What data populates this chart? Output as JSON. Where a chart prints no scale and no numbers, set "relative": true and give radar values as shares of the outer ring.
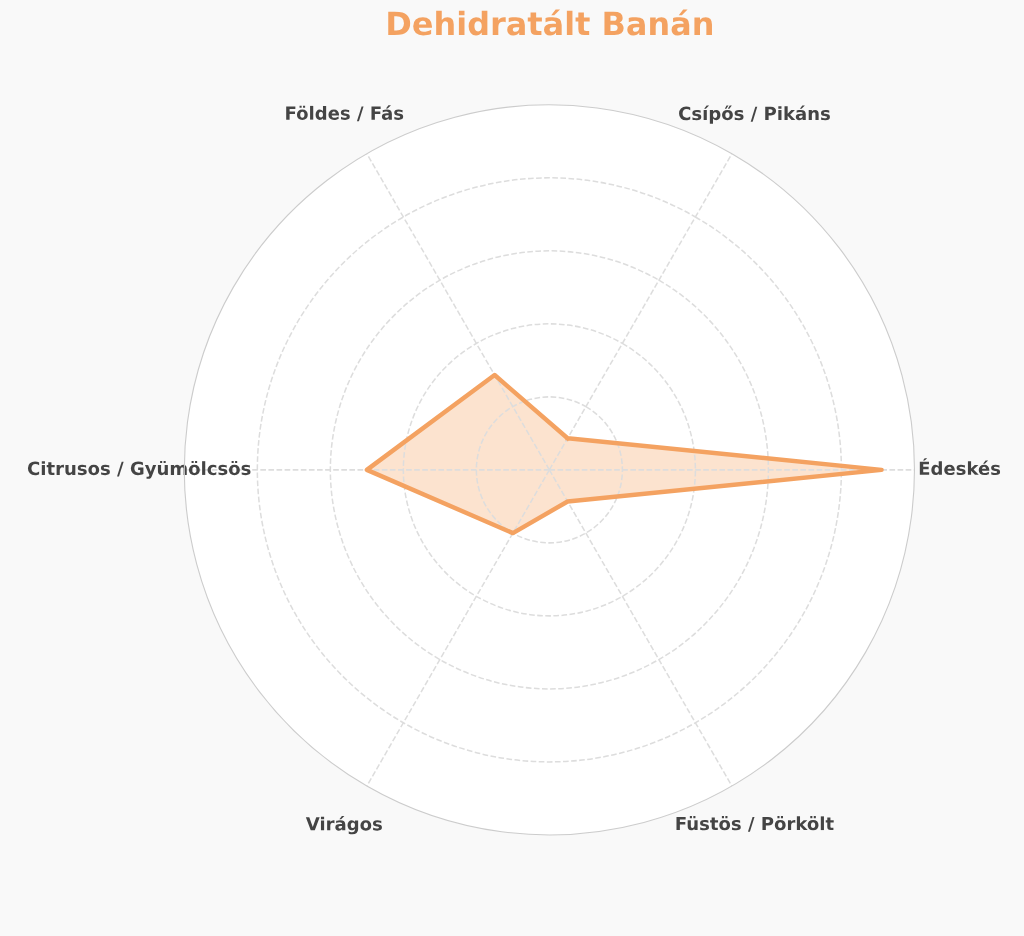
{
  "chart_data": {
    "type": "radar",
    "title": "Dehidratált Banán",
    "relative": true,
    "grid": true,
    "categories": [
      "Csípős / Pikáns",
      "Édeskés",
      "Füstös / Pörkölt",
      "Virágos",
      "Citrusos / Gyümölcsös",
      "Földes / Fás"
    ],
    "series": [
      {
        "color": "#f4a261",
        "values": [
          0.1,
          0.91,
          0.1,
          0.2,
          0.5,
          0.3
        ]
      }
    ]
  }
}
